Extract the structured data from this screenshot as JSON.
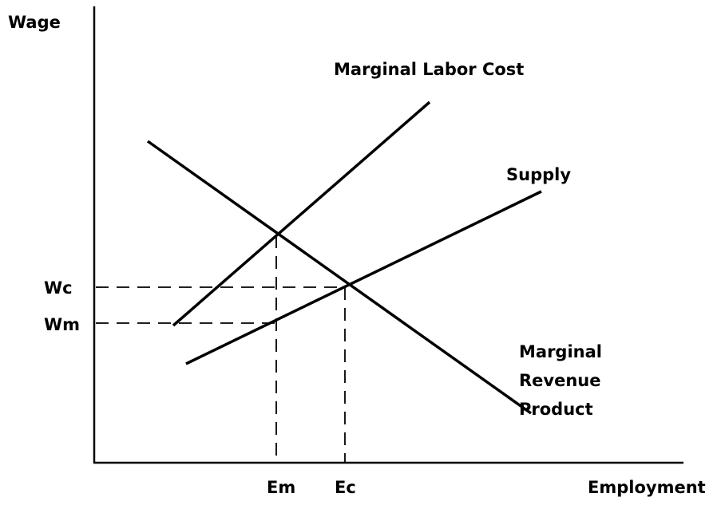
{
  "axes": {
    "y_label": "Wage",
    "x_label": "Employment"
  },
  "curves": {
    "marginal_labor_cost": "Marginal Labor Cost",
    "supply": "Supply",
    "marginal_revenue_product": [
      "Marginal",
      "Revenue",
      "Product"
    ]
  },
  "wage_levels": [
    "Wc",
    "Wm"
  ],
  "employment_levels": [
    "Em",
    "Ec"
  ]
}
